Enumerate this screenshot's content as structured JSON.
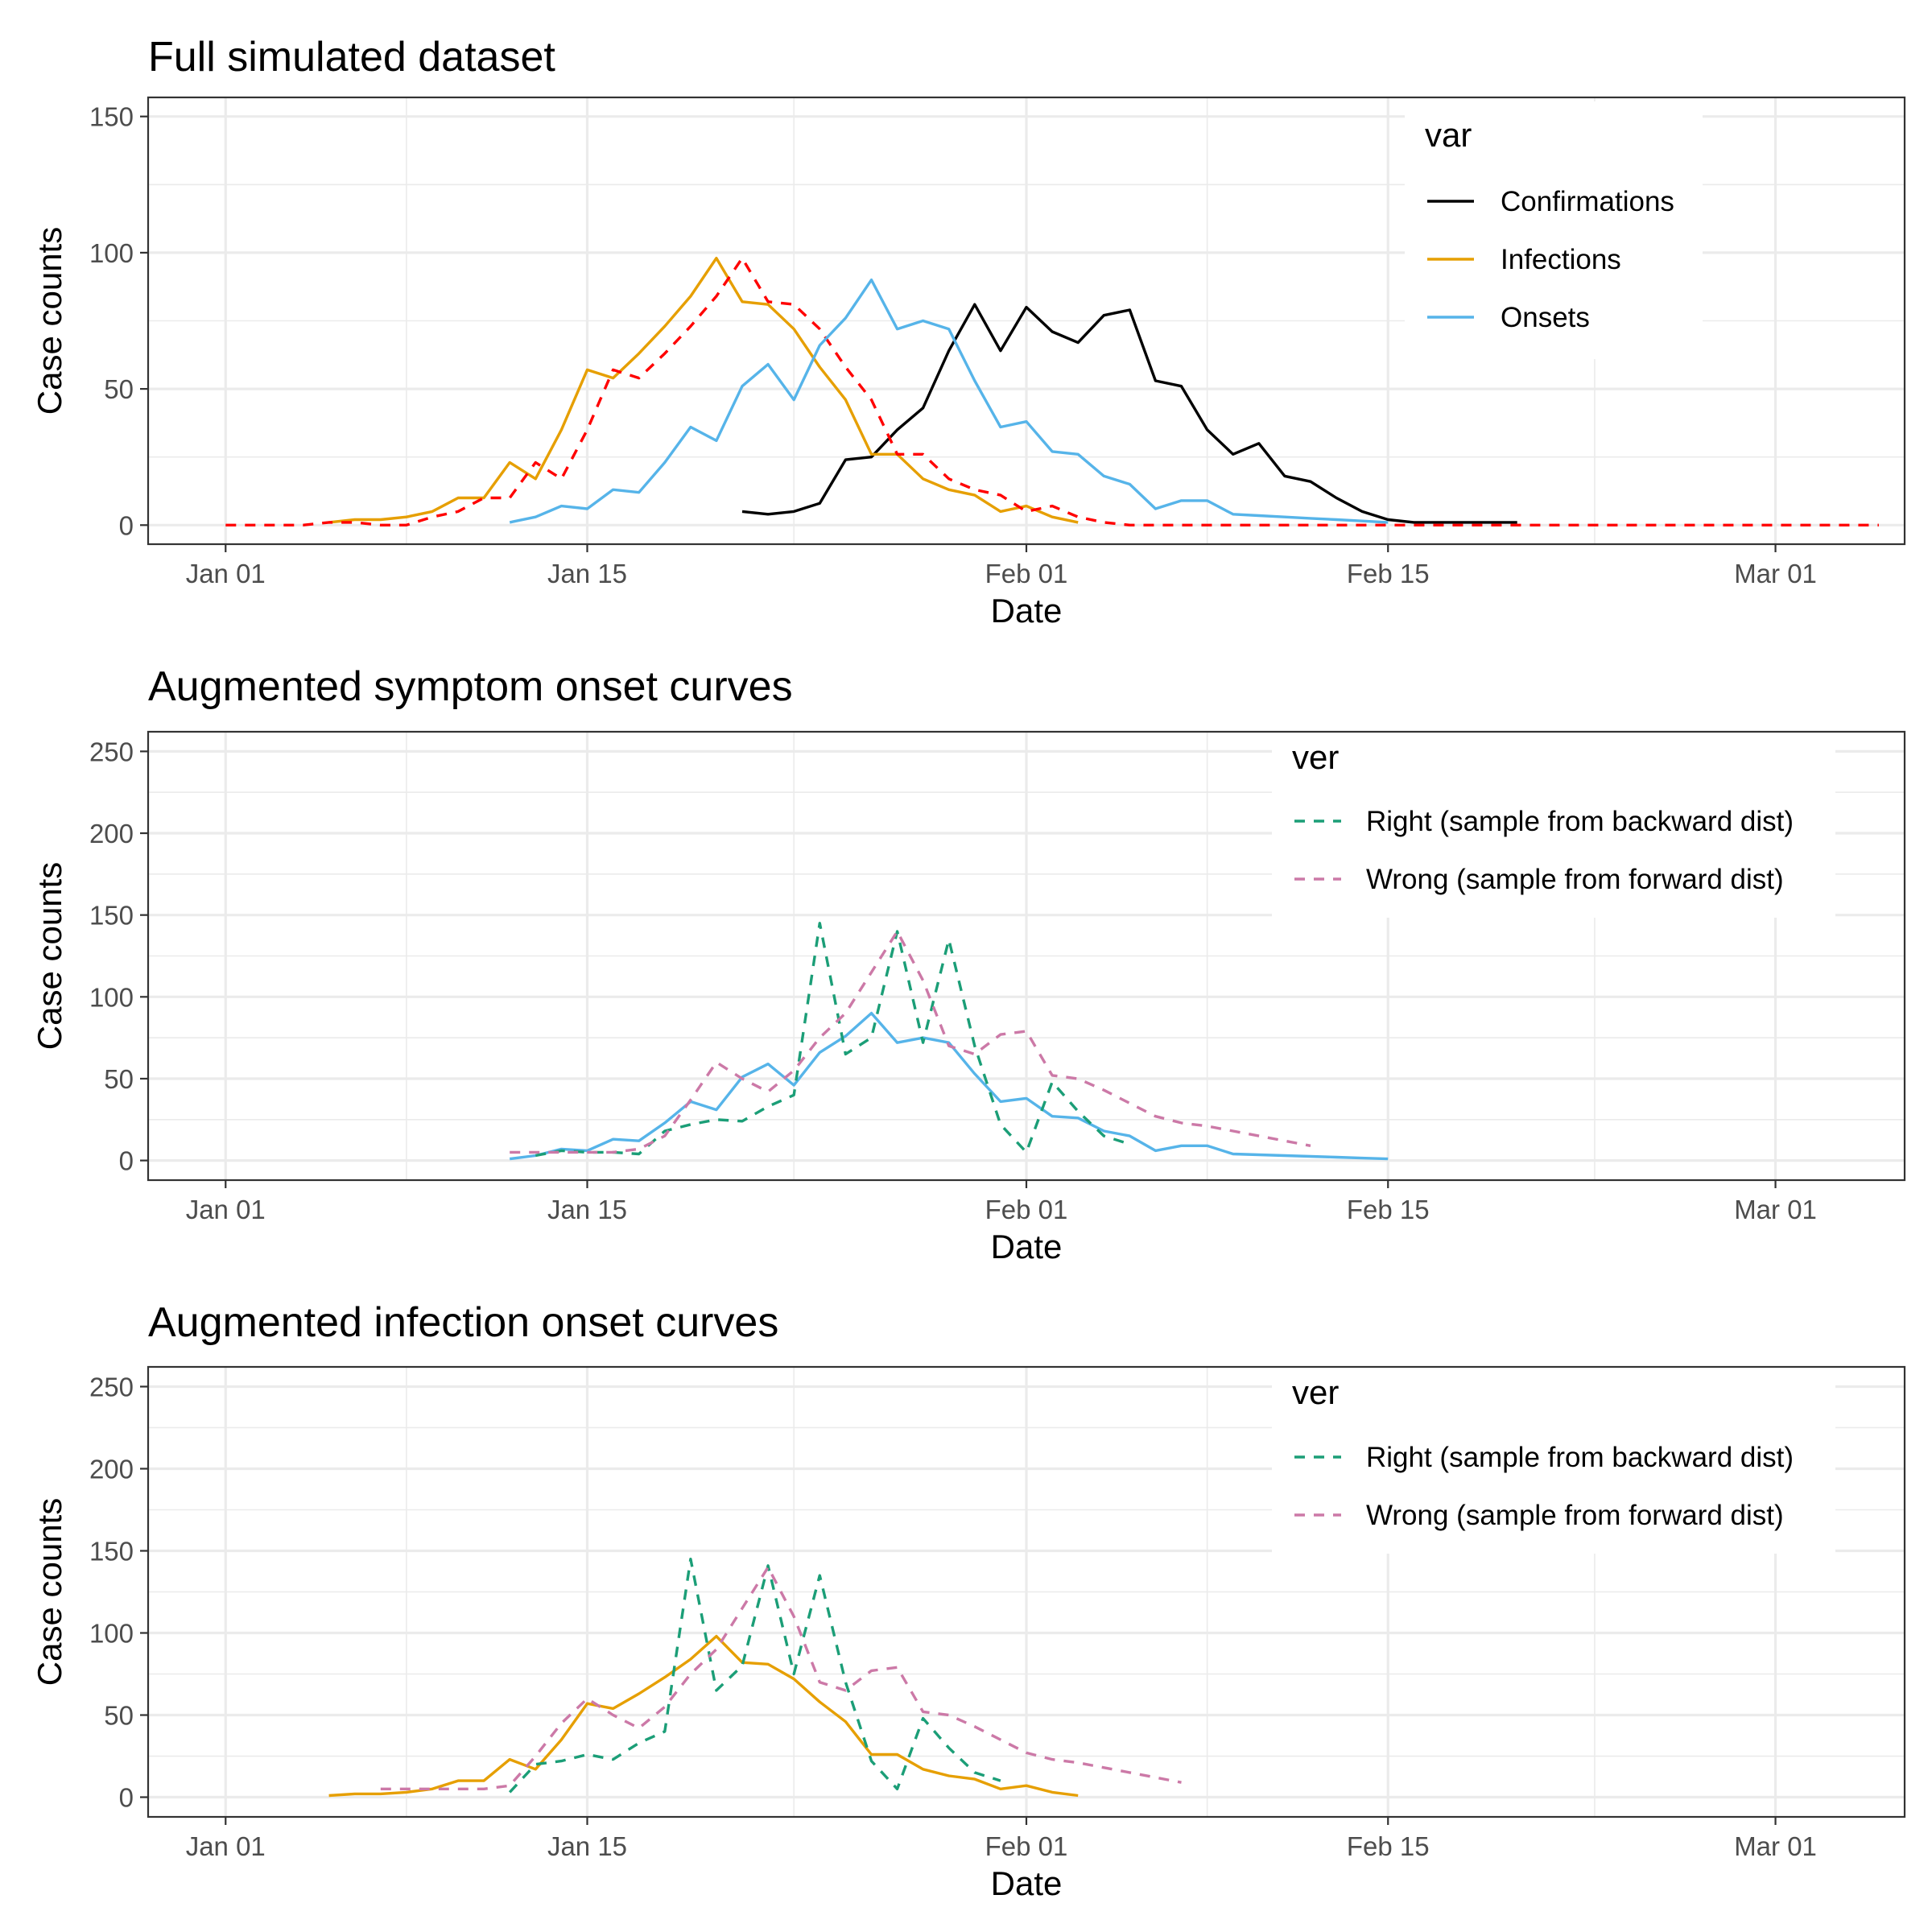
{
  "colors": {
    "confirmations": "#000000",
    "infections": "#E69F00",
    "onsets": "#56B4E9",
    "truth_dashed": "#FF0000",
    "right": "#1B9E77",
    "wrong": "#CC79A7"
  },
  "x_ticks": [
    "Jan 01",
    "Jan 15",
    "Feb 01",
    "Feb 15",
    "Mar 01"
  ],
  "chart_data": [
    {
      "type": "line",
      "title": "Full simulated dataset",
      "xlabel": "Date",
      "ylabel": "Case counts",
      "xlim": [
        "2019-12-29",
        "2020-03-06"
      ],
      "ylim": [
        -7,
        157
      ],
      "y_ticks": [
        0,
        50,
        100,
        150
      ],
      "grid": true,
      "legend": {
        "title": "var",
        "position": "top-right",
        "labels": [
          "Confirmations",
          "Infections",
          "Onsets"
        ]
      },
      "series": [
        {
          "name": "Confirmations",
          "key": "confirmations",
          "style": "solid",
          "x_start": "2020-01-21",
          "values": [
            5,
            4,
            5,
            8,
            24,
            25,
            35,
            43,
            64,
            81,
            64,
            80,
            71,
            67,
            77,
            79,
            53,
            51,
            35,
            26,
            30,
            18,
            16,
            10,
            5,
            2,
            1,
            1,
            1,
            1,
            1
          ]
        },
        {
          "name": "Infections",
          "key": "infections",
          "style": "solid",
          "x_start": "2020-01-05",
          "values": [
            1,
            2,
            2,
            3,
            5,
            10,
            10,
            23,
            17,
            35,
            57,
            54,
            63,
            73,
            84,
            98,
            82,
            81,
            72,
            58,
            46,
            26,
            26,
            17,
            13,
            11,
            5,
            7,
            3,
            1
          ]
        },
        {
          "name": "",
          "key": "truth_dashed",
          "style": "dashed",
          "x_start": "2020-01-01",
          "values": [
            0,
            0,
            0,
            0,
            1,
            1,
            0,
            0,
            3,
            5,
            10,
            10,
            23,
            17,
            35,
            57,
            54,
            63,
            73,
            84,
            98,
            82,
            81,
            72,
            58,
            46,
            26,
            26,
            17,
            13,
            11,
            5,
            7,
            3,
            1,
            0,
            0,
            0,
            0,
            0,
            0,
            0,
            0,
            0,
            0,
            0,
            0,
            0,
            0,
            0,
            0,
            0,
            0,
            0,
            0,
            0,
            0,
            0,
            0,
            0,
            0,
            0,
            0,
            0,
            0
          ]
        },
        {
          "name": "Onsets",
          "key": "onsets",
          "style": "solid",
          "x_start": "2020-01-12",
          "values": [
            1,
            3,
            7,
            6,
            13,
            12,
            23,
            36,
            31,
            51,
            59,
            46,
            66,
            76,
            90,
            72,
            75,
            72,
            53,
            36,
            38,
            27,
            26,
            18,
            15,
            6,
            9,
            9,
            4,
            3.5,
            3,
            2.5,
            2,
            1.5,
            1
          ]
        }
      ]
    },
    {
      "type": "line",
      "title": "Augmented symptom onset curves",
      "xlabel": "Date",
      "ylabel": "Case counts",
      "xlim": [
        "2019-12-29",
        "2020-03-06"
      ],
      "ylim": [
        -12,
        262
      ],
      "y_ticks": [
        0,
        50,
        100,
        150,
        200,
        250
      ],
      "grid": true,
      "legend": {
        "title": "ver",
        "position": "top-right",
        "labels": [
          "Right (sample from backward dist)",
          "Wrong (sample from forward dist)"
        ]
      },
      "series": [
        {
          "name": "",
          "key": "onsets",
          "style": "solid",
          "x_start": "2020-01-12",
          "values": [
            1,
            3,
            7,
            6,
            13,
            12,
            23,
            36,
            31,
            51,
            59,
            46,
            66,
            76,
            90,
            72,
            75,
            72,
            53,
            36,
            38,
            27,
            26,
            18,
            15,
            6,
            9,
            9,
            4,
            3.5,
            3,
            2.5,
            2,
            1.5,
            1
          ]
        },
        {
          "name": "Right (sample from backward dist)",
          "key": "right",
          "style": "dashed",
          "x_start": "2020-01-13",
          "values": [
            3,
            6,
            5,
            5,
            4,
            18,
            22,
            25,
            24,
            33,
            40,
            145,
            65,
            75,
            140,
            72,
            135,
            70,
            22,
            5,
            48,
            30,
            15,
            10
          ]
        },
        {
          "name": "Wrong (sample from forward dist)",
          "key": "wrong",
          "style": "dashed",
          "x_start": "2020-01-12",
          "values": [
            5,
            5,
            5,
            5,
            5,
            7,
            15,
            37,
            60,
            50,
            42,
            55,
            75,
            90,
            115,
            140,
            110,
            70,
            65,
            77,
            79,
            52,
            50,
            43,
            35,
            27,
            23,
            21,
            18,
            15,
            12,
            9
          ]
        }
      ]
    },
    {
      "type": "line",
      "title": "Augmented infection onset curves",
      "xlabel": "Date",
      "ylabel": "Case counts",
      "xlim": [
        "2019-12-29",
        "2020-03-06"
      ],
      "ylim": [
        -12,
        262
      ],
      "y_ticks": [
        0,
        50,
        100,
        150,
        200,
        250
      ],
      "grid": true,
      "legend": {
        "title": "ver",
        "position": "top-right",
        "labels": [
          "Right (sample from backward dist)",
          "Wrong (sample from forward dist)"
        ]
      },
      "series": [
        {
          "name": "",
          "key": "infections",
          "style": "solid",
          "x_start": "2020-01-05",
          "values": [
            1,
            2,
            2,
            3,
            5,
            10,
            10,
            23,
            17,
            35,
            57,
            54,
            63,
            73,
            84,
            98,
            82,
            81,
            72,
            58,
            46,
            26,
            26,
            17,
            13,
            11,
            5,
            7,
            3,
            1
          ]
        },
        {
          "name": "Right (sample from backward dist)",
          "key": "right",
          "style": "dashed",
          "x_start": "2020-01-12",
          "values": [
            3,
            20,
            22,
            26,
            23,
            33,
            40,
            145,
            65,
            80,
            141,
            75,
            135,
            70,
            22,
            5,
            48,
            30,
            15,
            10
          ]
        },
        {
          "name": "Wrong (sample from forward dist)",
          "key": "wrong",
          "style": "dashed",
          "x_start": "2020-01-07",
          "values": [
            5,
            5,
            5,
            5,
            5,
            7,
            25,
            45,
            60,
            50,
            42,
            55,
            75,
            90,
            115,
            140,
            110,
            70,
            65,
            77,
            79,
            52,
            50,
            43,
            35,
            27,
            23,
            21,
            18,
            15,
            12,
            9
          ]
        }
      ]
    }
  ]
}
